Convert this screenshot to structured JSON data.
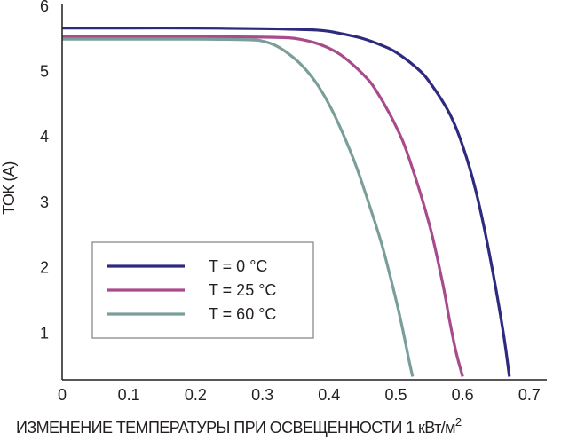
{
  "chart_data": {
    "type": "line",
    "xlabel": "ИЗМЕНЕНИЕ ТЕМПЕРАТУРЫ ПРИ ОСВЕЩЕННОСТИ 1 кВт/м",
    "xlabel_superscript": "2",
    "ylabel": "ТОК (А)",
    "xlim": [
      0,
      0.72
    ],
    "ylim": [
      0.3,
      6
    ],
    "x_ticks": [
      "0",
      "0.1",
      "0.2",
      "0.3",
      "0.4",
      "0.5",
      "0.6",
      "0.7"
    ],
    "y_ticks": [
      "1",
      "2",
      "3",
      "4",
      "5",
      "6"
    ],
    "grid": false,
    "legend_position": "center-left",
    "series": [
      {
        "name": "T = 0 °C",
        "color": "#2e2a7e",
        "x": [
          0,
          0.1,
          0.2,
          0.3,
          0.35,
          0.38,
          0.4,
          0.42,
          0.45,
          0.48,
          0.5,
          0.53,
          0.55,
          0.58,
          0.6,
          0.62,
          0.64,
          0.66,
          0.67
        ],
        "y": [
          5.65,
          5.65,
          5.65,
          5.64,
          5.63,
          5.62,
          5.6,
          5.56,
          5.49,
          5.38,
          5.28,
          5.05,
          4.83,
          4.35,
          3.85,
          3.15,
          2.2,
          1.05,
          0.32
        ]
      },
      {
        "name": "T = 25 °C",
        "color": "#a84b8c",
        "x": [
          0,
          0.1,
          0.2,
          0.3,
          0.34,
          0.36,
          0.38,
          0.4,
          0.42,
          0.45,
          0.47,
          0.5,
          0.52,
          0.55,
          0.57,
          0.58,
          0.59,
          0.6
        ],
        "y": [
          5.52,
          5.52,
          5.52,
          5.51,
          5.5,
          5.47,
          5.42,
          5.34,
          5.22,
          4.95,
          4.7,
          4.15,
          3.65,
          2.65,
          1.75,
          1.2,
          0.7,
          0.32
        ]
      },
      {
        "name": "T = 60 °C",
        "color": "#7a9e9a",
        "x": [
          0,
          0.1,
          0.2,
          0.28,
          0.3,
          0.32,
          0.34,
          0.36,
          0.38,
          0.4,
          0.42,
          0.44,
          0.46,
          0.48,
          0.5,
          0.51,
          0.52,
          0.525
        ],
        "y": [
          5.48,
          5.48,
          5.48,
          5.47,
          5.45,
          5.38,
          5.25,
          5.07,
          4.82,
          4.48,
          4.05,
          3.55,
          2.95,
          2.3,
          1.5,
          1.05,
          0.55,
          0.32
        ]
      }
    ]
  }
}
